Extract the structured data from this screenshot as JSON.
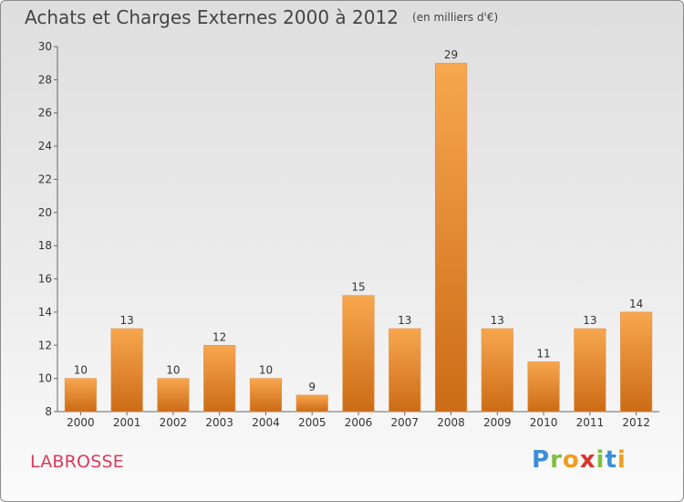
{
  "chart_data": {
    "type": "bar",
    "title": "Achats et Charges Externes 2000 à 2012",
    "subtitle": "(en milliers d'€)",
    "categories": [
      "2000",
      "2001",
      "2002",
      "2003",
      "2004",
      "2005",
      "2006",
      "2007",
      "2008",
      "2009",
      "2010",
      "2011",
      "2012"
    ],
    "values": [
      10,
      13,
      10,
      12,
      10,
      9,
      15,
      13,
      29,
      13,
      11,
      13,
      14
    ],
    "ylim": [
      8,
      30
    ],
    "yticks": [
      8,
      10,
      12,
      14,
      16,
      18,
      20,
      22,
      24,
      26,
      28,
      30
    ],
    "xlabel": "",
    "ylabel": "",
    "grid": false,
    "bar_color_top": "#f7a74f",
    "bar_color_bottom": "#cc6b16"
  },
  "footer": {
    "commune": "LABROSSE",
    "logo_text": "Proxiti"
  }
}
